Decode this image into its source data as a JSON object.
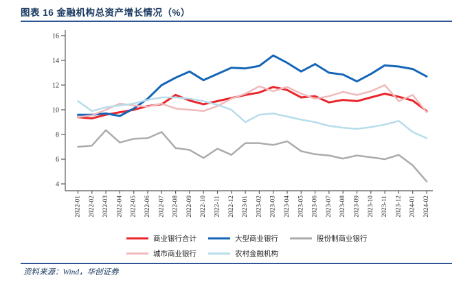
{
  "header": {
    "title": "图表 16  金融机构总资产增长情况（%）"
  },
  "footer": {
    "source": "资料来源：Wind，华创证券"
  },
  "style_colors": {
    "title_navy": "#17375E",
    "rule_blue": "#2F5597",
    "axis_gray": "#595959",
    "tick_text": "#262626"
  },
  "chart_data": {
    "type": "line",
    "title": "金融机构总资产增长情况（%）",
    "xlabel": "",
    "ylabel": "",
    "ylim": [
      4,
      16
    ],
    "yticks": [
      4,
      6,
      8,
      10,
      12,
      14,
      16
    ],
    "grid": false,
    "legend_position": "bottom",
    "categories": [
      "2022-01",
      "2022-02",
      "2022-03",
      "2022-04",
      "2022-05",
      "2022-06",
      "2022-07",
      "2022-08",
      "2022-09",
      "2022-10",
      "2022-11",
      "2022-12",
      "2023-01",
      "2023-02",
      "2023-03",
      "2023-04",
      "2023-05",
      "2023-06",
      "2023-07",
      "2023-08",
      "2023-09",
      "2023-10",
      "2023-11",
      "2023-12",
      "2024-01",
      "2024-02"
    ],
    "series": [
      {
        "name": "商业银行合计",
        "slug": "commercial-banks-total",
        "color": "#E8262C",
        "width": 3,
        "values": [
          9.4,
          9.3,
          9.6,
          9.8,
          10.0,
          10.3,
          10.45,
          11.2,
          10.75,
          10.45,
          10.7,
          10.95,
          11.2,
          11.4,
          11.85,
          11.6,
          11.0,
          11.1,
          10.6,
          10.8,
          10.7,
          11.0,
          11.3,
          11.05,
          10.75,
          9.9
        ]
      },
      {
        "name": "大型商业银行",
        "slug": "large-commercial-banks",
        "color": "#1566B8",
        "width": 3,
        "values": [
          9.6,
          9.6,
          9.7,
          9.5,
          10.1,
          10.9,
          12.0,
          12.6,
          13.1,
          12.4,
          12.9,
          13.4,
          13.35,
          13.55,
          14.4,
          13.8,
          13.1,
          13.7,
          13.0,
          12.85,
          12.3,
          12.9,
          13.6,
          13.5,
          13.3,
          12.7
        ]
      },
      {
        "name": "股份制商业银行",
        "slug": "joint-stock-banks",
        "color": "#ABABAB",
        "width": 2.5,
        "values": [
          7.0,
          7.1,
          8.35,
          7.35,
          7.65,
          7.7,
          8.2,
          6.9,
          6.75,
          6.1,
          6.85,
          6.35,
          7.3,
          7.3,
          7.15,
          7.45,
          6.65,
          6.4,
          6.3,
          6.05,
          6.3,
          6.15,
          6.0,
          6.35,
          5.5,
          4.2
        ]
      },
      {
        "name": "城市商业银行",
        "slug": "city-commercial-banks",
        "color": "#F0B9BB",
        "width": 2.5,
        "values": [
          9.4,
          9.55,
          10.0,
          10.5,
          10.35,
          10.25,
          10.5,
          10.1,
          10.0,
          9.9,
          10.3,
          10.9,
          11.3,
          11.9,
          11.5,
          11.85,
          11.3,
          10.9,
          11.1,
          11.45,
          11.2,
          11.5,
          12.0,
          10.7,
          11.2,
          9.8
        ]
      },
      {
        "name": "农村金融机构",
        "slug": "rural-financial-institutions",
        "color": "#B7DCEB",
        "width": 2.5,
        "values": [
          10.7,
          9.9,
          10.2,
          10.35,
          10.5,
          10.8,
          11.0,
          11.0,
          10.9,
          10.7,
          10.4,
          10.0,
          9.0,
          9.6,
          9.7,
          9.45,
          9.2,
          9.0,
          8.7,
          8.55,
          8.45,
          8.6,
          8.8,
          9.1,
          8.2,
          7.7
        ]
      }
    ],
    "legend_rows": [
      [
        0,
        1,
        2
      ],
      [
        3,
        4
      ]
    ]
  }
}
